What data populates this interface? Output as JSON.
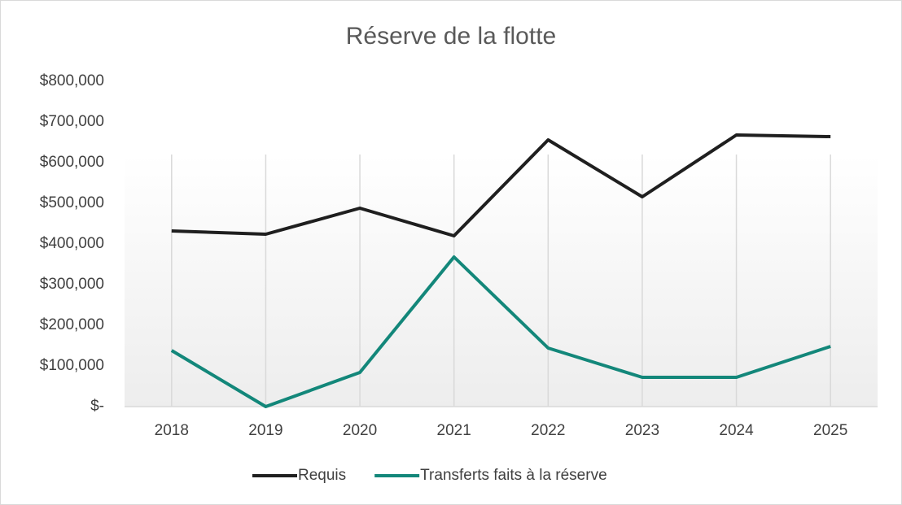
{
  "chart_data": {
    "type": "line",
    "title": "Réserve de la flotte",
    "categories": [
      "2018",
      "2019",
      "2020",
      "2021",
      "2022",
      "2023",
      "2024",
      "2025"
    ],
    "series": [
      {
        "name": "Requis",
        "color": "#1f1f1f",
        "values": [
          432000,
          424000,
          488000,
          420000,
          656000,
          516000,
          668000,
          664000
        ]
      },
      {
        "name": "Transferts faits à la réserve",
        "color": "#13877a",
        "values": [
          138000,
          0,
          84000,
          368000,
          144000,
          72000,
          72000,
          148000
        ]
      }
    ],
    "ylim": [
      0,
      800000
    ],
    "yticks": [
      {
        "value": 0,
        "label": "$-"
      },
      {
        "value": 100000,
        "label": "$100,000"
      },
      {
        "value": 200000,
        "label": "$200,000"
      },
      {
        "value": 300000,
        "label": "$300,000"
      },
      {
        "value": 400000,
        "label": "$400,000"
      },
      {
        "value": 500000,
        "label": "$500,000"
      },
      {
        "value": 600000,
        "label": "$600,000"
      },
      {
        "value": 700000,
        "label": "$700,000"
      },
      {
        "value": 800000,
        "label": "$800,000"
      }
    ],
    "legend": "bottom"
  }
}
